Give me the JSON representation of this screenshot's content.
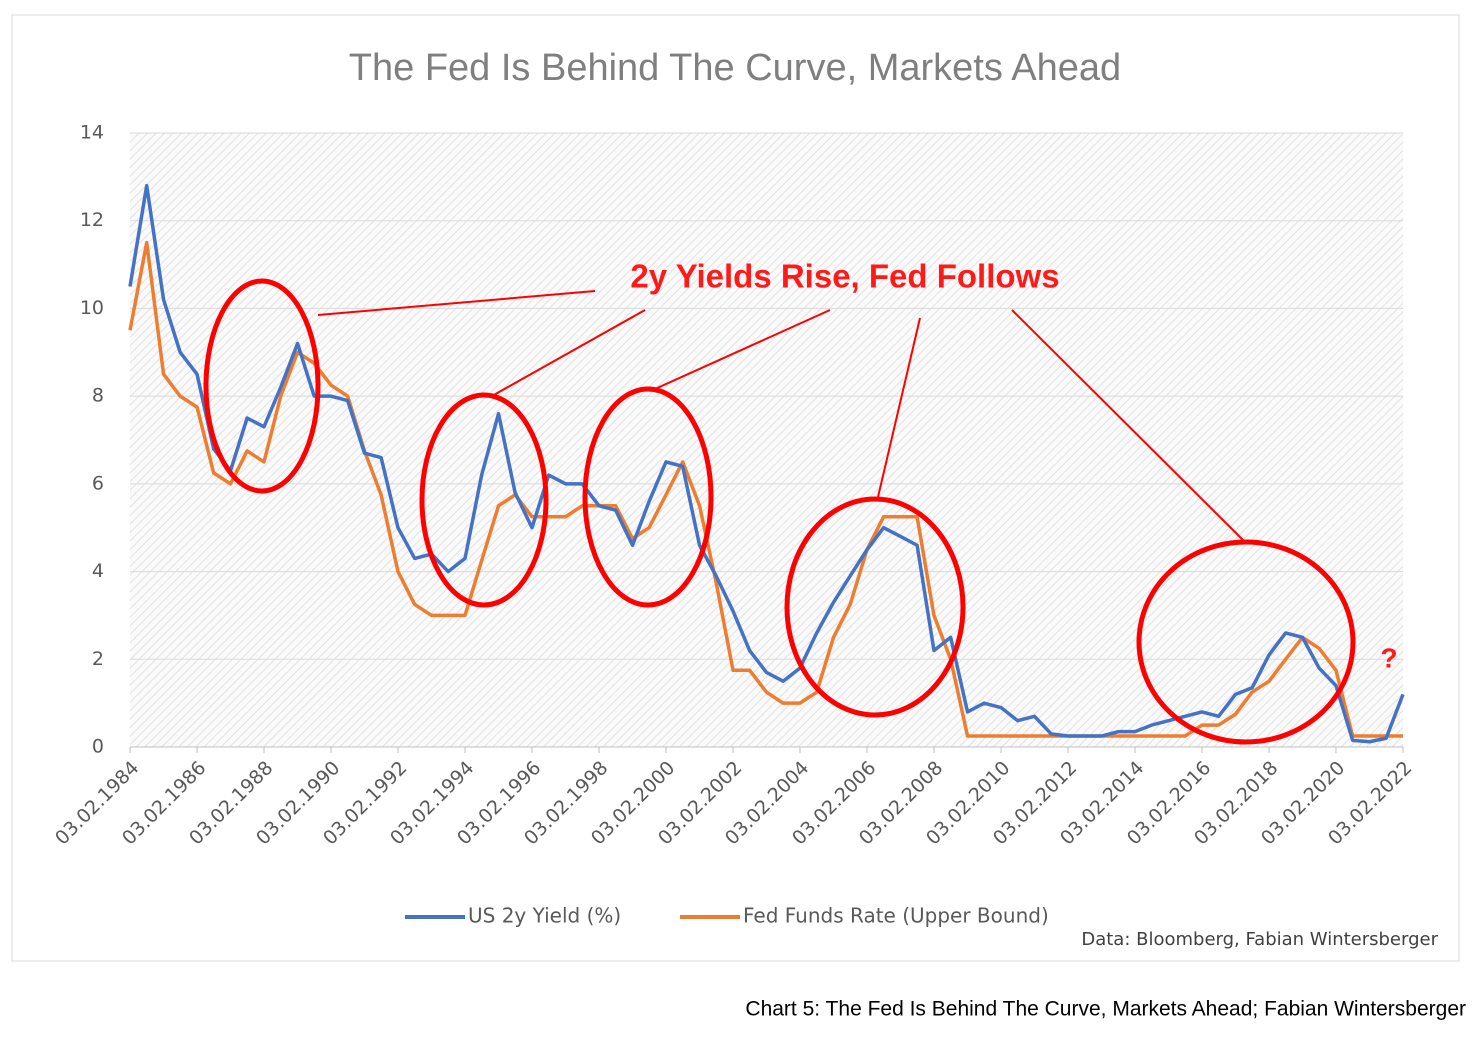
{
  "chart_data": {
    "type": "line",
    "title": "The Fed Is Behind The Curve, Markets Ahead",
    "annotations": [
      "2y Yields Rise, Fed Follows",
      "?"
    ],
    "source": "Data: Bloomberg, Fabian Wintersberger",
    "caption": "Chart 5: The Fed Is Behind The Curve, Markets Ahead; Fabian Wintersberger",
    "x": [
      "03.02.1984",
      "03.08.1984",
      "03.02.1985",
      "03.08.1985",
      "03.02.1986",
      "03.08.1986",
      "03.02.1987",
      "03.08.1987",
      "03.02.1988",
      "03.08.1988",
      "03.02.1989",
      "03.08.1989",
      "03.02.1990",
      "03.08.1990",
      "03.02.1991",
      "03.08.1991",
      "03.02.1992",
      "03.08.1992",
      "03.02.1993",
      "03.08.1993",
      "03.02.1994",
      "03.08.1994",
      "03.02.1995",
      "03.08.1995",
      "03.02.1996",
      "03.08.1996",
      "03.02.1997",
      "03.08.1997",
      "03.02.1998",
      "03.08.1998",
      "03.02.1999",
      "03.08.1999",
      "03.02.2000",
      "03.08.2000",
      "03.02.2001",
      "03.08.2001",
      "03.02.2002",
      "03.08.2002",
      "03.02.2003",
      "03.08.2003",
      "03.02.2004",
      "03.08.2004",
      "03.02.2005",
      "03.08.2005",
      "03.02.2006",
      "03.08.2006",
      "03.02.2007",
      "03.08.2007",
      "03.02.2008",
      "03.08.2008",
      "03.02.2009",
      "03.08.2009",
      "03.02.2010",
      "03.08.2010",
      "03.02.2011",
      "03.08.2011",
      "03.02.2012",
      "03.08.2012",
      "03.02.2013",
      "03.08.2013",
      "03.02.2014",
      "03.08.2014",
      "03.02.2015",
      "03.08.2015",
      "03.02.2016",
      "03.08.2016",
      "03.02.2017",
      "03.08.2017",
      "03.02.2018",
      "03.08.2018",
      "03.02.2019",
      "03.08.2019",
      "03.02.2020",
      "03.08.2020",
      "03.02.2021",
      "03.08.2021",
      "03.02.2022"
    ],
    "series": [
      {
        "name": "US 2y Yield (%)",
        "color": "#4472c4",
        "values": [
          10.5,
          12.8,
          10.2,
          9.0,
          8.5,
          6.8,
          6.3,
          7.5,
          7.3,
          8.2,
          9.2,
          8.0,
          8.0,
          7.9,
          6.7,
          6.6,
          5.0,
          4.3,
          4.4,
          4.0,
          4.3,
          6.2,
          7.6,
          5.8,
          5.0,
          6.2,
          6.0,
          6.0,
          5.5,
          5.4,
          4.6,
          5.6,
          6.5,
          6.4,
          4.6,
          3.9,
          3.1,
          2.2,
          1.7,
          1.5,
          1.8,
          2.6,
          3.3,
          3.9,
          4.5,
          5.0,
          4.8,
          4.6,
          2.2,
          2.5,
          0.8,
          1.0,
          0.9,
          0.6,
          0.7,
          0.3,
          0.25,
          0.25,
          0.25,
          0.35,
          0.35,
          0.5,
          0.6,
          0.7,
          0.8,
          0.7,
          1.2,
          1.35,
          2.1,
          2.6,
          2.5,
          1.8,
          1.4,
          0.15,
          0.12,
          0.2,
          1.2
        ]
      },
      {
        "name": "Fed Funds Rate (Upper Bound)",
        "color": "#ed7d31",
        "values": [
          9.5,
          11.5,
          8.5,
          8.0,
          7.75,
          6.25,
          6.0,
          6.75,
          6.5,
          8.0,
          9.0,
          8.75,
          8.25,
          8.0,
          6.75,
          5.75,
          4.0,
          3.25,
          3.0,
          3.0,
          3.0,
          4.25,
          5.5,
          5.75,
          5.25,
          5.25,
          5.25,
          5.5,
          5.5,
          5.5,
          4.75,
          5.0,
          5.75,
          6.5,
          5.5,
          3.75,
          1.75,
          1.75,
          1.25,
          1.0,
          1.0,
          1.25,
          2.5,
          3.25,
          4.5,
          5.25,
          5.25,
          5.25,
          3.0,
          2.0,
          0.25,
          0.25,
          0.25,
          0.25,
          0.25,
          0.25,
          0.25,
          0.25,
          0.25,
          0.25,
          0.25,
          0.25,
          0.25,
          0.25,
          0.5,
          0.5,
          0.75,
          1.25,
          1.5,
          2.0,
          2.5,
          2.25,
          1.75,
          0.25,
          0.25,
          0.25,
          0.25
        ]
      }
    ],
    "xlim": [
      "03.02.1984",
      "03.02.2022"
    ],
    "xticks": [
      "03.02.1984",
      "03.02.1986",
      "03.02.1988",
      "03.02.1990",
      "03.02.1992",
      "03.02.1994",
      "03.02.1996",
      "03.02.1998",
      "03.02.2000",
      "03.02.2002",
      "03.02.2004",
      "03.02.2006",
      "03.02.2008",
      "03.02.2010",
      "03.02.2012",
      "03.02.2014",
      "03.02.2016",
      "03.02.2018",
      "03.02.2020",
      "03.02.2022"
    ],
    "ylim": [
      0,
      14
    ],
    "yticks": [
      0,
      2,
      4,
      6,
      8,
      10,
      12,
      14
    ],
    "grid": true,
    "legend": "bottom"
  }
}
